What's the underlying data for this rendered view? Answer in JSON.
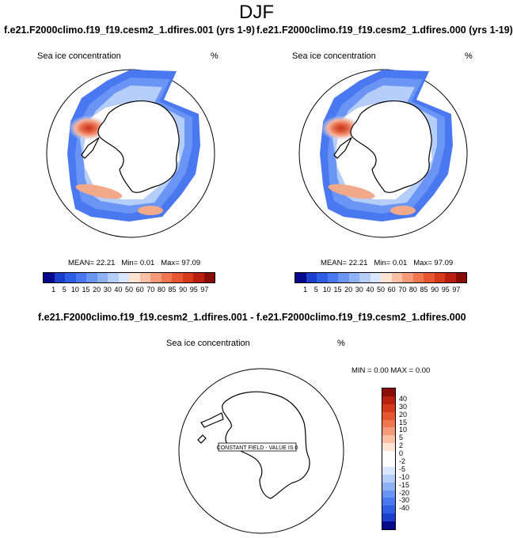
{
  "season": "DJF",
  "panel_left_title": "f.e21.F2000climo.f19_f19.cesm2_1.dfires.001 (yrs 1-9)",
  "panel_right_title": "f.e21.F2000climo.f19_f19.cesm2_1.dfires.000 (yrs 1-19)",
  "variable": "Sea ice concentration",
  "units": "%",
  "stats": {
    "mean_label": "MEAN=",
    "mean": "22.21",
    "min_label": "Min=",
    "min": "0.01",
    "max_label": "Max=",
    "max": "97.09"
  },
  "diff_title": "f.e21.F2000climo.f19_f19.cesm2_1.dfires.001 - f.e21.F2000climo.f19_f19.cesm2_1.dfires.000",
  "diff_stats": {
    "min_label": "MIN =",
    "min": "0.00",
    "max_label": "MAX =",
    "max": "0.00"
  },
  "constant_field": "CONSTANT FIELD - VALUE IS 0",
  "colors": {
    "abs_bar": [
      "#08088a",
      "#1a3fcd",
      "#2e5ee6",
      "#4a78f0",
      "#6b95f5",
      "#8fb2f7",
      "#b4cdf9",
      "#d9e6fc",
      "#fde3d2",
      "#f9c0a4",
      "#f49a78",
      "#ee7750",
      "#e65630",
      "#d63a1c",
      "#b81f0f",
      "#8a0c06"
    ],
    "diff_bar": [
      "#8a0c06",
      "#b81f0f",
      "#d63a1c",
      "#e65630",
      "#ee7750",
      "#f49a78",
      "#f9c0a4",
      "#fde3d2",
      "#ffffff",
      "#ffffff",
      "#d9e6fc",
      "#b4cdf9",
      "#8fb2f7",
      "#6b95f5",
      "#4a78f0",
      "#2e5ee6",
      "#1a3fcd",
      "#08088a"
    ]
  },
  "chart_data": [
    {
      "type": "heatmap",
      "projection": "south-polar-stereographic",
      "title": "f.e21.F2000climo.f19_f19.cesm2_1.dfires.001 (yrs 1-9)",
      "variable": "Sea ice concentration",
      "units": "%",
      "mean": 22.21,
      "min": 0.01,
      "max": 97.09,
      "colorbar_levels": [
        1,
        5,
        10,
        15,
        20,
        30,
        40,
        50,
        60,
        70,
        80,
        85,
        90,
        95,
        97
      ]
    },
    {
      "type": "heatmap",
      "projection": "south-polar-stereographic",
      "title": "f.e21.F2000climo.f19_f19.cesm2_1.dfires.000 (yrs 1-19)",
      "variable": "Sea ice concentration",
      "units": "%",
      "mean": 22.21,
      "min": 0.01,
      "max": 97.09,
      "colorbar_levels": [
        1,
        5,
        10,
        15,
        20,
        30,
        40,
        50,
        60,
        70,
        80,
        85,
        90,
        95,
        97
      ]
    },
    {
      "type": "heatmap",
      "projection": "south-polar-stereographic",
      "title": "f.e21.F2000climo.f19_f19.cesm2_1.dfires.001 - f.e21.F2000climo.f19_f19.cesm2_1.dfires.000",
      "variable": "Sea ice concentration",
      "units": "%",
      "min": 0.0,
      "max": 0.0,
      "note": "CONSTANT FIELD - VALUE IS 0",
      "colorbar_levels": [
        40,
        30,
        20,
        15,
        10,
        5,
        2,
        0,
        -2,
        -5,
        -10,
        -15,
        -20,
        -30,
        -40
      ]
    }
  ]
}
